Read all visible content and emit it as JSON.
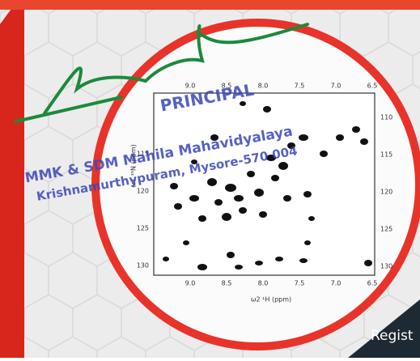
{
  "stamp": {
    "title": "PRINCIPAL",
    "line1": "MMK & SDM Mahila Mahavidyalaya",
    "line2": "Krishnamurthypuram, Mysore-570 004"
  },
  "spectrum": {
    "top_ticks": [
      "9.0",
      "8.5",
      "8.0",
      "7.5",
      "7.0",
      "6.5"
    ],
    "bottom_ticks": [
      "9.0",
      "8.5",
      "8.0",
      "7.5",
      "7.0",
      "6.5"
    ],
    "left_ticks": [
      "115",
      "120",
      "125",
      "130"
    ],
    "right_ticks": [
      "110",
      "115",
      "120",
      "125",
      "130"
    ],
    "x_label": "ω2 ¹H (ppm)",
    "y_label": "ω1 ¹⁵N (ppm)"
  },
  "footer": {
    "text": "Regist"
  }
}
